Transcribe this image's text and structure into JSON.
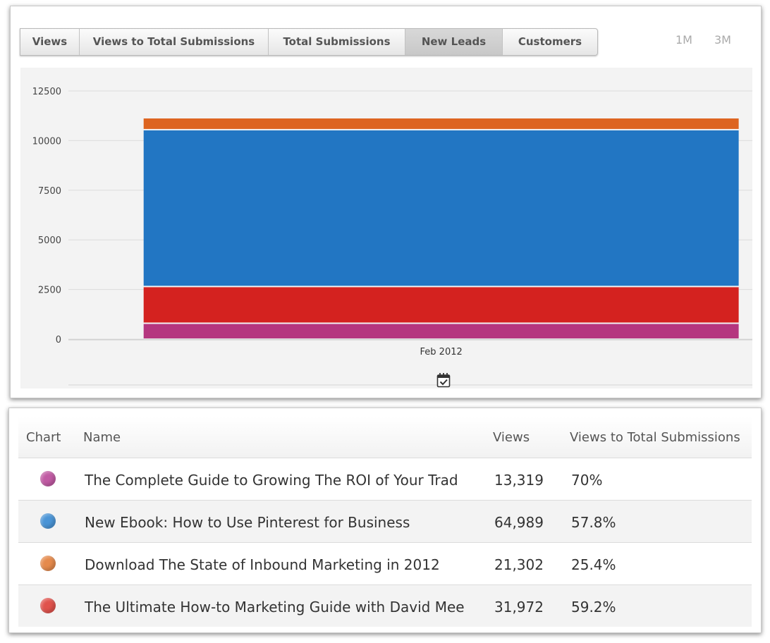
{
  "tabs": [
    {
      "label": "Views",
      "active": false
    },
    {
      "label": "Views to Total Submissions",
      "active": false
    },
    {
      "label": "Total Submissions",
      "active": false
    },
    {
      "label": "New Leads",
      "active": true
    },
    {
      "label": "Customers",
      "active": false
    }
  ],
  "ranges": [
    "1M",
    "3M"
  ],
  "chart_data": {
    "type": "bar",
    "stacked": true,
    "categories": [
      "Feb 2012"
    ],
    "series": [
      {
        "color": "#b5367f",
        "values": [
          800
        ]
      },
      {
        "color": "#d4221f",
        "values": [
          1850
        ]
      },
      {
        "color": "#2276c3",
        "values": [
          7900
        ]
      },
      {
        "color": "#dd6420",
        "values": [
          600
        ]
      }
    ],
    "ylim": [
      0,
      12500
    ],
    "yticks": [
      "0",
      "2500",
      "5000",
      "7500",
      "10000",
      "12500"
    ],
    "grid": true
  },
  "table": {
    "headers": {
      "chart": "Chart",
      "name": "Name",
      "views": "Views",
      "ratio": "Views to Total Submissions"
    },
    "rows": [
      {
        "color": "#c05aa3",
        "name": "The Complete Guide to Growing The ROI of Your Trad",
        "views": "13,319",
        "ratio": "70%"
      },
      {
        "color": "#4a94d6",
        "name": "New Ebook: How to Use Pinterest for Business",
        "views": "64,989",
        "ratio": "57.8%"
      },
      {
        "color": "#e58a4c",
        "name": "Download The State of Inbound Marketing in 2012",
        "views": "21,302",
        "ratio": "25.4%"
      },
      {
        "color": "#e0524c",
        "name": "The Ultimate How-to Marketing Guide with David Mee",
        "views": "31,972",
        "ratio": "59.2%"
      }
    ]
  }
}
